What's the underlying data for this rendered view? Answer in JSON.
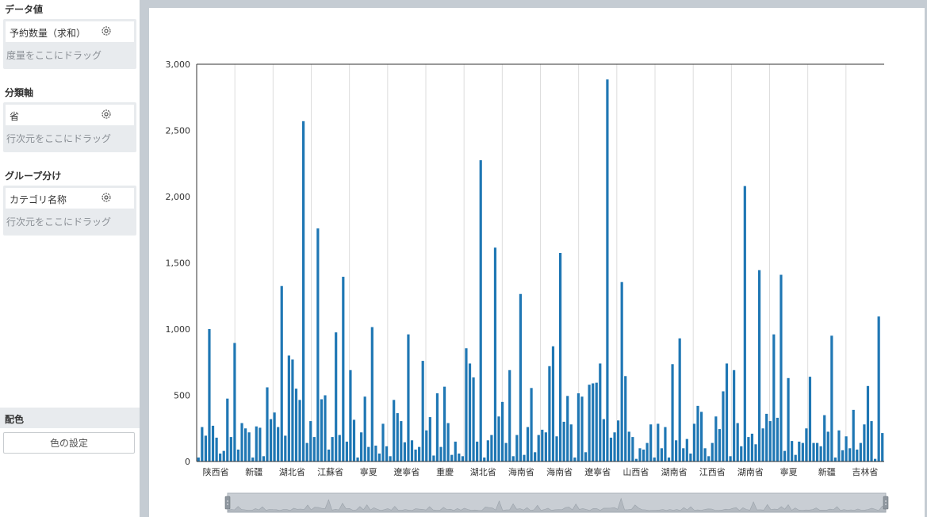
{
  "sidebar": {
    "data_value": {
      "title": "データ値",
      "field": "予約数量（求和）",
      "hint": "度量をここにドラッグ"
    },
    "category_axis": {
      "title": "分類軸",
      "field": "省",
      "hint": "行次元をここにドラッグ"
    },
    "grouping": {
      "title": "グループ分け",
      "field": "カテゴリ名称",
      "hint": "行次元をここにドラッグ"
    },
    "color": {
      "title": "配色",
      "button_label": "色の設定"
    }
  },
  "chart_data": {
    "type": "bar",
    "ylim": [
      0,
      3000
    ],
    "yticks": [
      "0",
      "500",
      "1,000",
      "1,500",
      "2,000",
      "2,500",
      "3,000"
    ],
    "ytick_values": [
      0,
      500,
      1000,
      1500,
      2000,
      2500,
      3000
    ],
    "xtick_labels": [
      "陕西省",
      "新疆",
      "湖北省",
      "江蘇省",
      "寧夏",
      "遼寧省",
      "重慶",
      "湖北省",
      "海南省",
      "海南省",
      "遼寧省",
      "山西省",
      "湖南省",
      "江西省",
      "湖南省",
      "寧夏",
      "新疆",
      "吉林省"
    ],
    "bar_color": "#1f77b4",
    "grid": "vertical",
    "values": [
      30,
      260,
      195,
      1000,
      270,
      180,
      60,
      80,
      475,
      185,
      895,
      90,
      290,
      250,
      220,
      30,
      265,
      255,
      40,
      560,
      320,
      370,
      260,
      1325,
      195,
      800,
      770,
      550,
      465,
      2570,
      140,
      305,
      185,
      1760,
      470,
      500,
      90,
      185,
      975,
      200,
      1395,
      150,
      690,
      315,
      30,
      220,
      490,
      110,
      1015,
      120,
      60,
      285,
      115,
      40,
      465,
      365,
      305,
      145,
      960,
      160,
      90,
      110,
      760,
      235,
      335,
      45,
      515,
      110,
      565,
      290,
      50,
      150,
      60,
      40,
      855,
      740,
      635,
      150,
      2275,
      30,
      160,
      200,
      1615,
      340,
      450,
      140,
      690,
      40,
      200,
      1265,
      50,
      260,
      555,
      70,
      200,
      240,
      220,
      720,
      870,
      190,
      1575,
      300,
      495,
      280,
      30,
      515,
      490,
      70,
      580,
      590,
      595,
      740,
      320,
      2885,
      180,
      220,
      310,
      1355,
      645,
      225,
      185,
      20,
      100,
      90,
      140,
      280,
      30,
      285,
      100,
      260,
      30,
      735,
      160,
      930,
      100,
      170,
      60,
      285,
      420,
      375,
      100,
      40,
      140,
      340,
      245,
      530,
      740,
      40,
      690,
      290,
      115,
      2080,
      185,
      210,
      130,
      1445,
      250,
      360,
      305,
      960,
      330,
      1410,
      80,
      630,
      155,
      50,
      150,
      140,
      250,
      640,
      140,
      140,
      115,
      350,
      225,
      950,
      30,
      235,
      85,
      190,
      100,
      390,
      90,
      140,
      280,
      570,
      305,
      20,
      1095,
      215
    ]
  }
}
